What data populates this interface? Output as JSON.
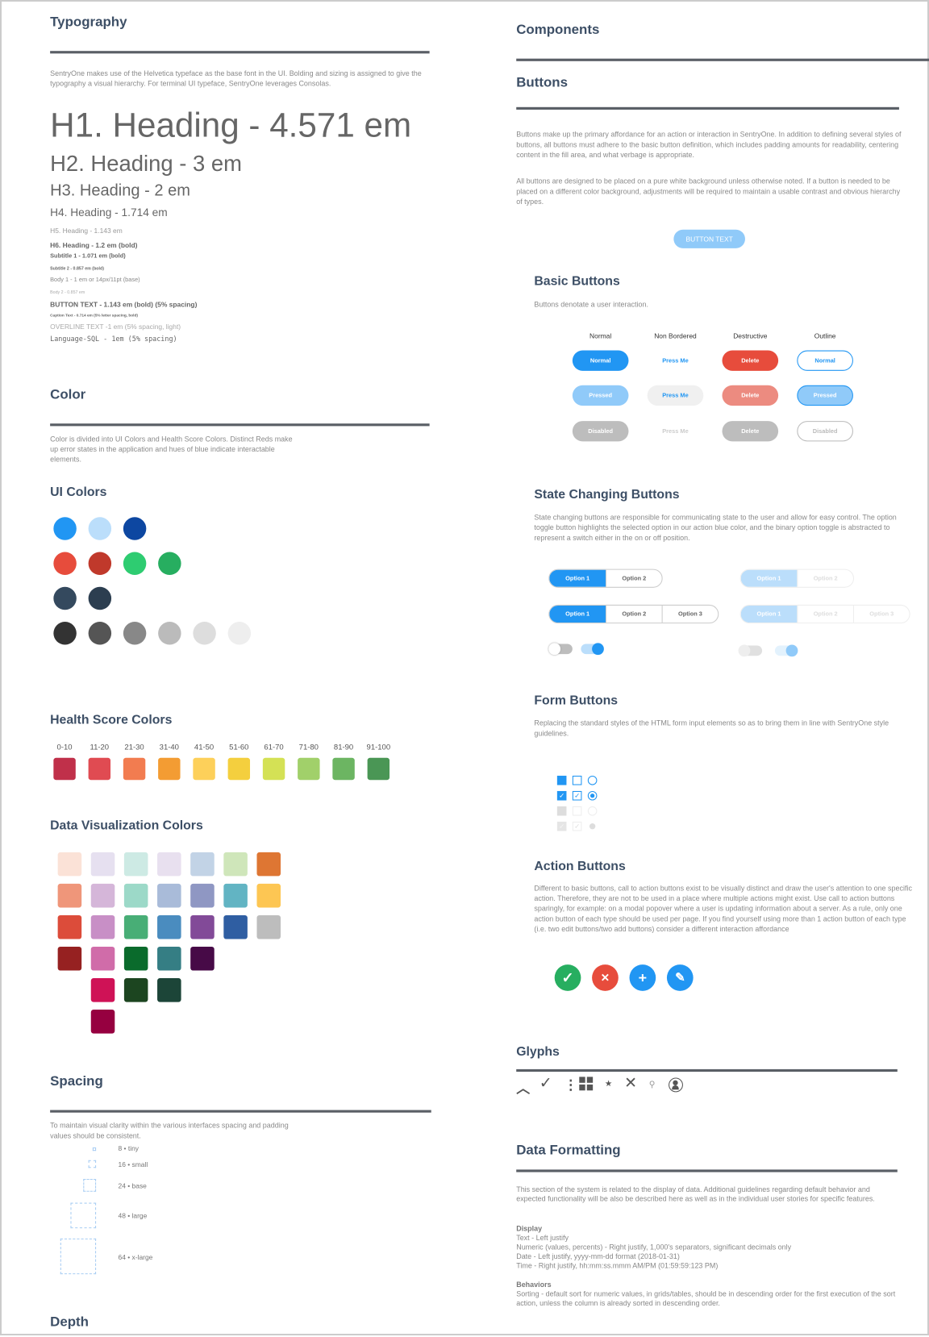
{
  "typography": {
    "title": "Typography",
    "paragraph": "SentryOne makes use of the Helvetica typeface as the base font in the UI. Bolding and sizing is assigned to give the typography a visual hierarchy.  For terminal UI typeface, SentryOne leverages Consolas.",
    "samples": [
      "H1. Heading - 4.571 em",
      "H2. Heading - 3 em",
      "H3. Heading - 2 em",
      "H4. Heading - 1.714 em",
      "H5. Heading - 1.143 em",
      "H6. Heading - 1.2 em (bold)",
      "Subtitle 1 - 1.071 em (bold)",
      "Subtitle 2 - 0.857 em (bold)",
      "Body 1 - 1 em or 14px/11pt (base)",
      "Body 2 - 0.857 em",
      "BUTTON TEXT - 1.143 em (bold) (5% spacing)",
      "Caption Text - 0.714 em (5% letter spacing, bold)",
      "OVERLINE TEXT -1 em (5% spacing, light)",
      "Language-SQL - 1em (5% spacing)"
    ]
  },
  "color": {
    "title": "Color",
    "paragraph": "Color is divided into UI Colors and Health Score Colors. Distinct Reds make up error states in the application and hues of blue indicate interactable elements.",
    "ui_title": "UI Colors",
    "ui_rows": [
      [
        "#2196f3",
        "#bbdefb",
        "#0d47a1"
      ],
      [
        "#e74c3c",
        "#c0392b",
        "#2ecc71",
        "#27ae60"
      ],
      [
        "#34495e",
        "#2c3e50"
      ],
      [
        "#333333",
        "#555555",
        "#888888",
        "#bbbbbb",
        "#dddddd",
        "#eeeeee"
      ]
    ],
    "health_title": "Health Score Colors",
    "health": [
      {
        "label": "0-10",
        "color": "#c0304a"
      },
      {
        "label": "11-20",
        "color": "#e04b52"
      },
      {
        "label": "21-30",
        "color": "#f27c50"
      },
      {
        "label": "31-40",
        "color": "#f39c33"
      },
      {
        "label": "41-50",
        "color": "#fdd05a"
      },
      {
        "label": "51-60",
        "color": "#f4cf3e"
      },
      {
        "label": "61-70",
        "color": "#d4e155"
      },
      {
        "label": "71-80",
        "color": "#a1d06a"
      },
      {
        "label": "81-90",
        "color": "#6cb562"
      },
      {
        "label": "91-100",
        "color": "#4a9655"
      }
    ],
    "dataviz_title": "Data Visualization Colors",
    "dataviz_columns": [
      [
        "#fbe2d7",
        "#ef967a",
        "#dc4c3a",
        "#962121"
      ],
      [
        "#e6e0f0",
        "#d5b6d9",
        "#c88fc6",
        "#d06ca9",
        "#cf1256",
        "#960040"
      ],
      [
        "#cdeae4",
        "#9cd9c8",
        "#48ae76",
        "#0a6b2c",
        "#1c4520"
      ],
      [
        "#e8e0ef",
        "#a9bbd9",
        "#4a8cbf",
        "#357e84",
        "#1c4538"
      ],
      [
        "#c2d3e6",
        "#8f97c3",
        "#824a98",
        "#470a47"
      ],
      [
        "#cfe6ba",
        "#62b4c3",
        "#2f5ea2"
      ],
      [
        "#de7633",
        "#fdc653",
        "#bdbdbd"
      ]
    ]
  },
  "spacing": {
    "title": "Spacing",
    "paragraph": "To maintain visual clarity within the various interfaces spacing and padding values should be consistent.",
    "items": [
      "8 • tiny",
      "16 • small",
      "24 • base",
      "48 • large",
      "64 • x-large"
    ]
  },
  "depth": {
    "title": "Depth"
  },
  "components": {
    "title": "Components"
  },
  "buttons": {
    "title": "Buttons",
    "paragraph1": "Buttons make up the primary affordance for an action or interaction in SentryOne. In addition to defining several styles of buttons, all buttons must adhere to the basic button definition, which includes padding amounts for readability, centering content in the fill area, and what verbage is appropriate.",
    "paragraph2": "All buttons are designed to be placed on a pure white background unless otherwise noted. If a button is needed to be placed on a different color background, adjustments will be required to maintain a usable contrast and obvious hierarchy of types.",
    "sample": "BUTTON TEXT"
  },
  "basic": {
    "title": "Basic Buttons",
    "desc": "Buttons denotate a user interaction.",
    "columns": [
      "Normal",
      "Non Bordered",
      "Destructive",
      "Outline"
    ],
    "rows": [
      [
        "Normal",
        "Press Me",
        "Delete",
        "Normal"
      ],
      [
        "Pressed",
        "Press Me",
        "Delete",
        "Pressed"
      ],
      [
        "Disabled",
        "Press Me",
        "Delete",
        "Disabled"
      ]
    ]
  },
  "state": {
    "title": "State Changing Buttons",
    "desc": "State changing buttons are responsible for communicating state to the user and allow for easy control. The option toggle button highlights the selected option in our action blue color, and the binary option toggle is abstracted to represent a switch either in the on or off position.",
    "options2": [
      "Option 1",
      "Option 2"
    ],
    "options3": [
      "Option 1",
      "Option 2",
      "Option 3"
    ]
  },
  "form": {
    "title": "Form Buttons",
    "desc": "Replacing the standard styles of the HTML form input elements so as to bring them in line with SentryOne style guidelines."
  },
  "action": {
    "title": "Action Buttons",
    "desc": "Different to basic buttons, call to action buttons exist to be visually distinct and draw the user's attention to one specific action. Therefore, they are not to be used in a place where multiple actions might exist. Use call to action buttons sparingly, for example: on a modal popover where a user is updating information about a server. As a rule, only one action button of each type should be used per page. If you find yourself using more than 1 action button of each type (i.e. two edit buttons/two add buttons) consider a different interaction affordance"
  },
  "glyphs": {
    "title": "Glyphs",
    "icons": [
      "chevron-up-icon",
      "check-icon",
      "kebab-icon",
      "grid-icon",
      "star-icon",
      "close-icon",
      "search-icon",
      "user-icon"
    ]
  },
  "data_formatting": {
    "title": "Data Formatting",
    "paragraph": "This section of the system is related to the display of data.  Additional guidelines regarding default behavior and expected functionality will be also be described here as well as in the individual user stories for specific features.",
    "display_title": "Display",
    "display": [
      "Text - Left justify",
      "Numeric (values, percents) - Right justify, 1,000's separators, significant decimals only",
      "Date - Left justify, yyyy-mm-dd format (2018-01-31)",
      "Time - Right justify, hh:mm:ss.mmm AM/PM (01:59:59:123 PM)"
    ],
    "behaviors_title": "Behaviors",
    "behaviors": [
      "Sorting - default sort for numeric values, in grids/tables, should be in descending order for the first execution of the sort action, unless the column is already sorted in descending order."
    ]
  },
  "colors": {
    "blue": "#2196f3",
    "light_blue": "#90caf9",
    "red": "#e74c3c",
    "green": "#27ae60",
    "heading": "#3d4f66"
  }
}
